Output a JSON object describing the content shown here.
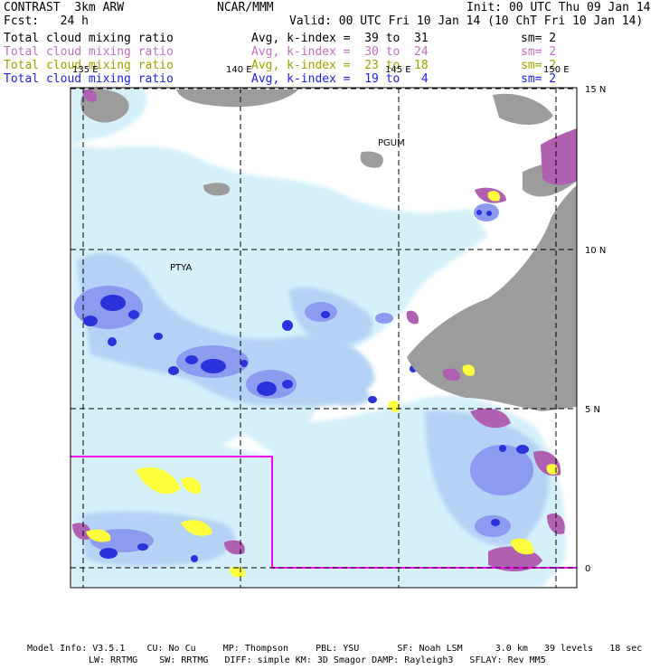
{
  "header": {
    "title": "CONTRAST  3km ARW",
    "org": "NCAR/MMM",
    "init": "Init: 00 UTC Thu 09 Jan 14",
    "fcst": "Fcst:   24 h",
    "valid": "Valid: 00 UTC Fri 10 Jan 14 (10 ChT Fri 10 Jan 14)",
    "colors": {
      "black": "#000000",
      "violet": "#c070c0",
      "olive": "#a0a000",
      "blue": "#2020e0"
    },
    "rows": [
      {
        "field": "Total cloud mixing ratio",
        "stat": "Avg, k-index =  39 to  31",
        "sm": "sm= 2",
        "color": "#000000"
      },
      {
        "field": "Total cloud mixing ratio",
        "stat": "Avg, k-index =  30 to  24",
        "sm": "sm= 2",
        "color": "#c070c0"
      },
      {
        "field": "Total cloud mixing ratio",
        "stat": "Avg, k-index =  23 to  18",
        "sm": "sm= 2",
        "color": "#a0a000"
      },
      {
        "field": "Total cloud mixing ratio",
        "stat": "Avg, k-index =  19 to   4",
        "sm": "sm= 2",
        "color": "#2020e0"
      }
    ]
  },
  "map": {
    "lon_labels": [
      "135 E",
      "140 E",
      "145 E",
      "150 E"
    ],
    "lat_labels": [
      "15 N",
      "10 N",
      "5 N",
      "0"
    ],
    "stations": [
      "PGUM",
      "PTYA"
    ],
    "colors": {
      "light_cyan": "#d6f0fa",
      "light_blue": "#b4d2f5",
      "mid_blue": "#8c9af0",
      "deep_blue": "#2a32dc",
      "gray": "#9c9c9c",
      "magenta_box": "#ff00ff",
      "purple": "#b060b0",
      "yellow": "#ffff3c"
    }
  },
  "footer": {
    "line1": "Model Info: V3.5.1    CU: No Cu     MP: Thompson     PBL: YSU       SF: Noah LSM      3.0 km   39 levels   18 sec",
    "line2": "LW: RRTMG    SW: RRTMG   DIFF: simple KM: 3D Smagor DAMP: Rayleigh3   SFLAY: Rev MM5"
  }
}
